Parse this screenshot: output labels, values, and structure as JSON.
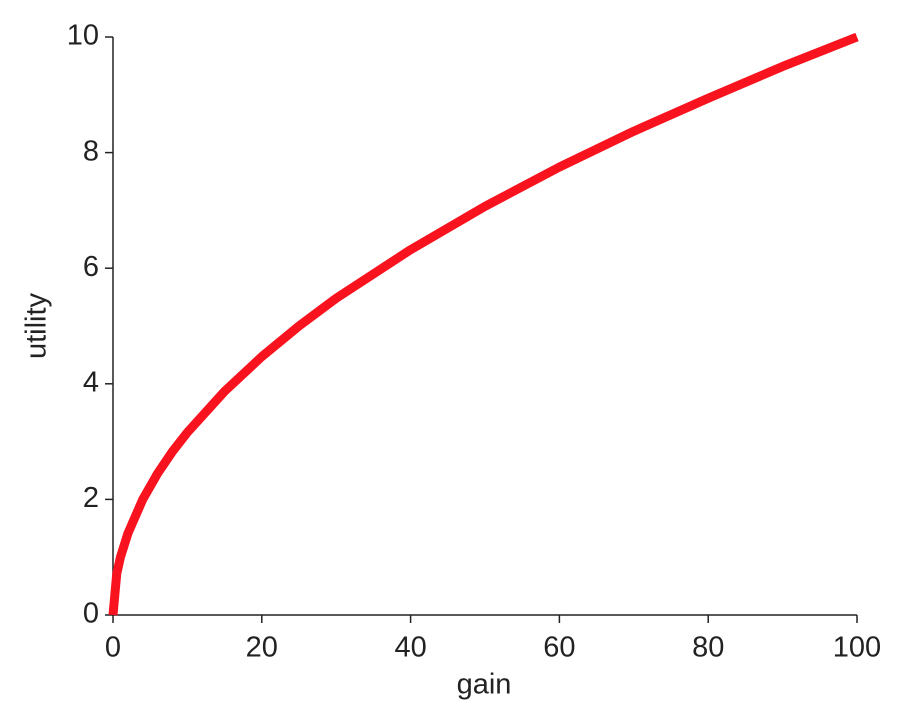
{
  "chart_data": {
    "type": "line",
    "x_label": "gain",
    "y_label": "utility",
    "x": [
      0,
      0.5,
      1,
      2,
      4,
      6,
      8,
      10,
      15,
      20,
      25,
      30,
      40,
      50,
      60,
      70,
      80,
      90,
      100
    ],
    "series": [
      {
        "color": "#f8131f",
        "values": [
          0,
          0.71,
          1,
          1.41,
          2,
          2.45,
          2.83,
          3.16,
          3.87,
          4.47,
          5,
          5.48,
          6.32,
          7.07,
          7.75,
          8.37,
          8.94,
          9.49,
          10
        ]
      }
    ],
    "xlim": [
      0,
      100
    ],
    "xticks": [
      0,
      20,
      40,
      60,
      80,
      100
    ],
    "ylim": [
      0,
      10
    ],
    "yticks": [
      0,
      2,
      4,
      6,
      8,
      10
    ]
  }
}
